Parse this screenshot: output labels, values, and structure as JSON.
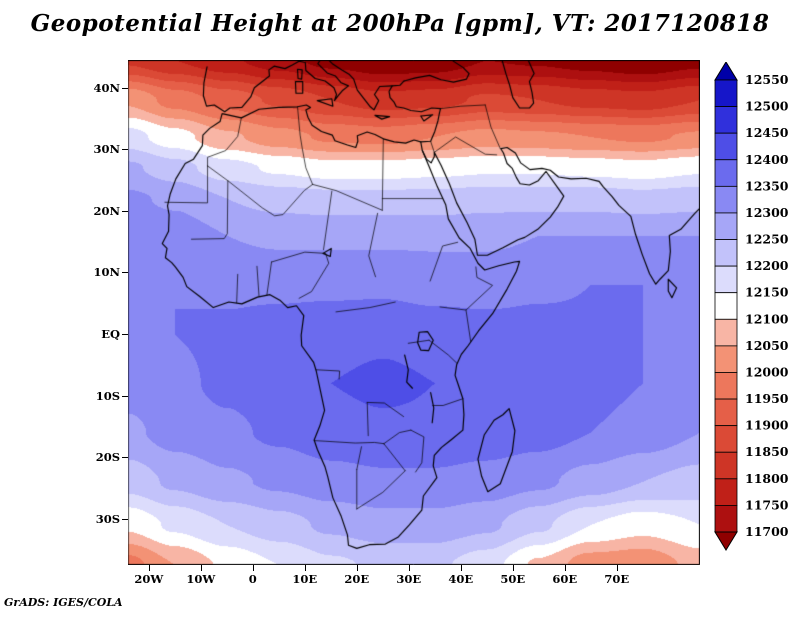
{
  "title": "Geopotential Height at 200hPa [gpm], VT: 2017120818",
  "credit": "GrADS: IGES/COLA",
  "chart_data": {
    "type": "heatmap",
    "style": "filled-contour-map",
    "title": "Geopotential Height at 200hPa [gpm], VT: 2017120818",
    "variable": "Geopotential Height",
    "level": "200hPa",
    "units": "gpm",
    "valid_time": "2017120818",
    "region": "Africa / Mediterranean / Arabian Peninsula",
    "lon_range": [
      -24,
      86
    ],
    "lat_range": [
      -37.5,
      44.5
    ],
    "x_tick_values": [
      -20,
      -10,
      0,
      10,
      20,
      30,
      40,
      50,
      60,
      70
    ],
    "x_tick_labels": [
      "20W",
      "10W",
      "0",
      "10E",
      "20E",
      "30E",
      "40E",
      "50E",
      "60E",
      "70E"
    ],
    "y_tick_values": [
      40,
      30,
      20,
      10,
      0,
      -10,
      -20,
      -30
    ],
    "y_tick_labels": [
      "40N",
      "30N",
      "20N",
      "10N",
      "EQ",
      "10S",
      "20S",
      "30S"
    ],
    "colorbar": {
      "orientation": "vertical",
      "levels": [
        11700,
        11750,
        11800,
        11850,
        11900,
        11950,
        12000,
        12050,
        12100,
        12150,
        12200,
        12250,
        12300,
        12350,
        12400,
        12450,
        12500,
        12550
      ],
      "colors_low_to_high": [
        "#8f0000",
        "#ad1010",
        "#c02018",
        "#ce3526",
        "#db4a36",
        "#e55f48",
        "#ed775c",
        "#f39275",
        "#f8b5a5",
        "#ffffff",
        "#dcdcfc",
        "#c2c2fa",
        "#a6a6f7",
        "#8989f3",
        "#6b6bee",
        "#4e4ee7",
        "#3030dc",
        "#1616c9",
        "#0000a8"
      ]
    },
    "grid_lons": [
      -24,
      -15,
      -5,
      5,
      15,
      25,
      35,
      45,
      55,
      65,
      75,
      86
    ],
    "grid_lats": [
      44.5,
      38,
      32,
      27,
      22,
      16,
      8,
      0,
      -8,
      -16,
      -24,
      -31,
      -37.5
    ],
    "grid_values_gpm": [
      [
        11840,
        11800,
        11760,
        11720,
        11680,
        11650,
        11660,
        11700,
        11690,
        11670,
        11650,
        11680
      ],
      [
        12040,
        11980,
        11930,
        11890,
        11850,
        11820,
        11830,
        11860,
        11850,
        11830,
        11820,
        11850
      ],
      [
        12170,
        12120,
        12060,
        12020,
        11990,
        11980,
        12000,
        12020,
        12010,
        12000,
        11990,
        12010
      ],
      [
        12260,
        12220,
        12170,
        12140,
        12120,
        12120,
        12130,
        12140,
        12140,
        12130,
        12120,
        12140
      ],
      [
        12310,
        12290,
        12250,
        12230,
        12220,
        12220,
        12220,
        12230,
        12230,
        12230,
        12220,
        12230
      ],
      [
        12340,
        12330,
        12300,
        12290,
        12290,
        12290,
        12290,
        12290,
        12300,
        12300,
        12300,
        12300
      ],
      [
        12350,
        12350,
        12340,
        12340,
        12340,
        12340,
        12330,
        12330,
        12340,
        12350,
        12350,
        12350
      ],
      [
        12330,
        12350,
        12360,
        12370,
        12380,
        12390,
        12380,
        12370,
        12370,
        12360,
        12350,
        12340
      ],
      [
        12320,
        12340,
        12360,
        12380,
        12400,
        12410,
        12400,
        12390,
        12380,
        12370,
        12350,
        12330
      ],
      [
        12290,
        12320,
        12340,
        12360,
        12380,
        12390,
        12390,
        12380,
        12370,
        12350,
        12330,
        12300
      ],
      [
        12220,
        12260,
        12290,
        12310,
        12330,
        12340,
        12340,
        12330,
        12310,
        12280,
        12250,
        12230
      ],
      [
        12110,
        12160,
        12200,
        12230,
        12260,
        12280,
        12280,
        12260,
        12210,
        12150,
        12120,
        12150
      ],
      [
        11980,
        12050,
        12110,
        12150,
        12190,
        12210,
        12210,
        12170,
        12090,
        12020,
        12010,
        12070
      ]
    ],
    "grid_on": false,
    "legend_position": "right"
  }
}
